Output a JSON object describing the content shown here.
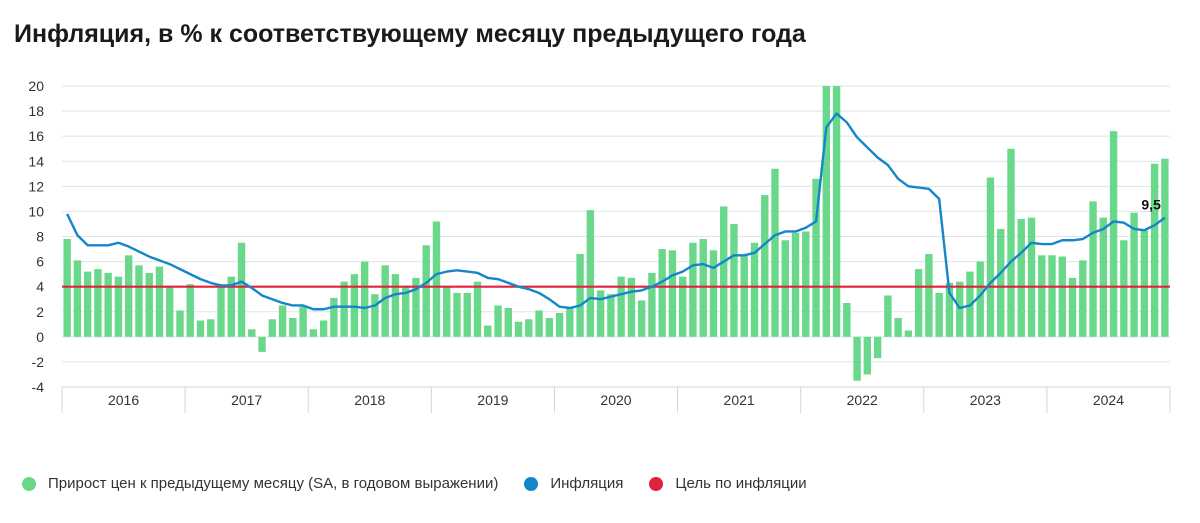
{
  "title": "Инфляция, в % к соответствующему месяцу предыдущего года",
  "chart_data": {
    "type": "bar",
    "ylim": [
      -4,
      20
    ],
    "yticks": [
      -4,
      -2,
      0,
      2,
      4,
      6,
      8,
      10,
      12,
      14,
      16,
      18,
      20
    ],
    "year_labels": [
      "2016",
      "2017",
      "2018",
      "2019",
      "2020",
      "2021",
      "2022",
      "2023",
      "2024"
    ],
    "series": [
      {
        "name": "Прирост цен к предыдущему месяцу (SA, в годовом выражении)",
        "type": "bar",
        "color": "#6ad88b",
        "values": [
          7.8,
          6.1,
          5.2,
          5.4,
          5.1,
          4.8,
          6.5,
          5.7,
          5.1,
          5.6,
          4.0,
          2.1,
          4.2,
          1.3,
          1.4,
          4.1,
          4.8,
          7.5,
          0.6,
          -1.2,
          1.4,
          2.5,
          1.5,
          2.4,
          0.6,
          1.3,
          3.1,
          4.4,
          5.0,
          6.0,
          3.4,
          5.7,
          5.0,
          4.0,
          4.7,
          7.3,
          9.2,
          4.0,
          3.5,
          3.5,
          4.4,
          0.9,
          2.5,
          2.3,
          1.2,
          1.4,
          2.1,
          1.5,
          1.9,
          2.4,
          6.6,
          10.1,
          3.7,
          3.4,
          4.8,
          4.7,
          2.9,
          5.1,
          7.0,
          6.9,
          4.8,
          7.5,
          7.8,
          6.9,
          10.4,
          9.0,
          6.5,
          7.5,
          11.3,
          13.4,
          7.7,
          8.3,
          8.4,
          12.6,
          20.0,
          20.0,
          2.7,
          -3.5,
          -3.0,
          -1.7,
          3.3,
          1.5,
          0.5,
          5.4,
          6.6,
          3.5,
          4.3,
          4.4,
          5.2,
          6.0,
          12.7,
          8.6,
          15.0,
          9.4,
          9.5,
          6.5,
          6.5,
          6.4,
          4.7,
          6.1,
          10.8,
          9.5,
          16.4,
          7.7,
          9.9,
          8.5,
          13.8,
          14.2
        ]
      },
      {
        "name": "Инфляция",
        "type": "line",
        "color": "#1486c9",
        "values": [
          9.8,
          8.1,
          7.3,
          7.3,
          7.3,
          7.5,
          7.2,
          6.8,
          6.4,
          6.1,
          5.8,
          5.4,
          5.0,
          4.6,
          4.3,
          4.1,
          4.1,
          4.4,
          3.9,
          3.3,
          3.0,
          2.7,
          2.5,
          2.5,
          2.2,
          2.2,
          2.4,
          2.4,
          2.4,
          2.3,
          2.5,
          3.1,
          3.4,
          3.5,
          3.8,
          4.3,
          5.0,
          5.2,
          5.3,
          5.2,
          5.1,
          4.7,
          4.6,
          4.3,
          4.0,
          3.8,
          3.5,
          3.0,
          2.4,
          2.3,
          2.5,
          3.1,
          3.0,
          3.2,
          3.4,
          3.6,
          3.7,
          4.0,
          4.4,
          4.9,
          5.2,
          5.7,
          5.8,
          5.5,
          6.0,
          6.5,
          6.5,
          6.7,
          7.4,
          8.1,
          8.4,
          8.4,
          8.7,
          9.2,
          16.7,
          17.8,
          17.1,
          15.9,
          15.1,
          14.3,
          13.7,
          12.6,
          12.0,
          11.9,
          11.8,
          11.0,
          3.5,
          2.3,
          2.5,
          3.3,
          4.3,
          5.1,
          6.0,
          6.7,
          7.5,
          7.4,
          7.4,
          7.7,
          7.7,
          7.8,
          8.3,
          8.6,
          9.2,
          9.1,
          8.6,
          8.5,
          8.9,
          9.5
        ]
      },
      {
        "name": "Цель по инфляции",
        "type": "line",
        "color": "#e0223a",
        "value": 4
      }
    ],
    "annotations": [
      {
        "label": "9,5",
        "x_index": 107,
        "y": 9.5
      }
    ]
  },
  "legend": [
    {
      "label": "Прирост цен к предыдущему месяцу (SA, в годовом выражении)",
      "color": "#6ad88b"
    },
    {
      "label": "Инфляция",
      "color": "#1486c9"
    },
    {
      "label": "Цель по инфляции",
      "color": "#e0223a"
    }
  ]
}
